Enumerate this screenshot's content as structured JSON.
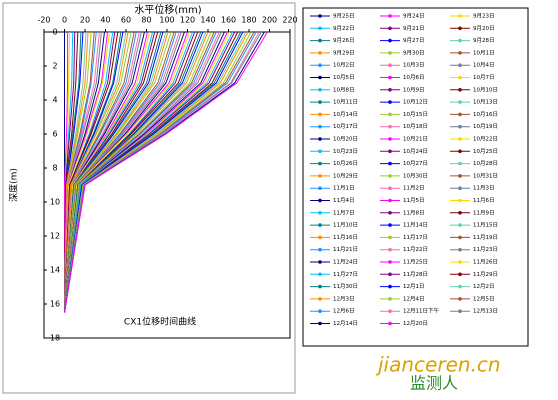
{
  "chart_data": {
    "type": "line",
    "title": "水平位移(mm)",
    "y_label": "深度(m)",
    "annotation": "CX1位移时间曲线",
    "watermark": [
      "jianceren.cn",
      "监测人"
    ],
    "xlim": [
      -20,
      220
    ],
    "xticks": [
      -20,
      0,
      20,
      40,
      60,
      80,
      100,
      120,
      140,
      160,
      180,
      200,
      220
    ],
    "ylim": [
      0,
      18
    ],
    "yticks": [
      0,
      2,
      4,
      6,
      8,
      10,
      12,
      14,
      16,
      18
    ],
    "y_inverted": true,
    "palette": [
      "#000080",
      "#ff00ff",
      "#ffd700",
      "#00bfff",
      "#800080",
      "#800000",
      "#008080",
      "#0000ff",
      "#66cdaa",
      "#ff8c00",
      "#9acd32",
      "#a0522d",
      "#1e90ff",
      "#ff69b4",
      "#708090"
    ],
    "y": [
      0,
      3,
      6,
      9,
      16.5
    ],
    "series": [
      {
        "name": "9月25日",
        "x": [
          0,
          0,
          0,
          0,
          0
        ]
      },
      {
        "name": "9月24日",
        "x": [
          3,
          3,
          2,
          0,
          0
        ]
      },
      {
        "name": "9月23日",
        "x": [
          5,
          4,
          3,
          1,
          0
        ]
      },
      {
        "name": "9月22日",
        "x": [
          8,
          7,
          4,
          1,
          0
        ]
      },
      {
        "name": "9月21日",
        "x": [
          10,
          9,
          5,
          1,
          0
        ]
      },
      {
        "name": "9月20日",
        "x": [
          13,
          11,
          7,
          1,
          0
        ]
      },
      {
        "name": "9月26日",
        "x": [
          16,
          14,
          8,
          2,
          0
        ]
      },
      {
        "name": "9月27日",
        "x": [
          18,
          15,
          9,
          2,
          0
        ]
      },
      {
        "name": "9月28日",
        "x": [
          21,
          18,
          11,
          2,
          0
        ]
      },
      {
        "name": "9月29日",
        "x": [
          23,
          20,
          12,
          2,
          0
        ]
      },
      {
        "name": "9月30日",
        "x": [
          26,
          22,
          13,
          3,
          0
        ]
      },
      {
        "name": "10月1日",
        "x": [
          29,
          25,
          15,
          3,
          0
        ]
      },
      {
        "name": "10月2日",
        "x": [
          31,
          26,
          16,
          3,
          0
        ]
      },
      {
        "name": "10月3日",
        "x": [
          34,
          29,
          17,
          3,
          0
        ]
      },
      {
        "name": "10月4日",
        "x": [
          36,
          31,
          18,
          4,
          0
        ]
      },
      {
        "name": "10月5日",
        "x": [
          39,
          33,
          20,
          4,
          0
        ]
      },
      {
        "name": "10月6日",
        "x": [
          42,
          36,
          21,
          4,
          0
        ]
      },
      {
        "name": "10月7日",
        "x": [
          44,
          37,
          22,
          4,
          0
        ]
      },
      {
        "name": "10月8日",
        "x": [
          47,
          40,
          24,
          5,
          0
        ]
      },
      {
        "name": "10月9日",
        "x": [
          49,
          42,
          25,
          5,
          0
        ]
      },
      {
        "name": "10月10日",
        "x": [
          52,
          44,
          26,
          5,
          0
        ]
      },
      {
        "name": "10月11日",
        "x": [
          55,
          47,
          28,
          6,
          0
        ]
      },
      {
        "name": "10月12日",
        "x": [
          57,
          48,
          29,
          6,
          0
        ]
      },
      {
        "name": "10月13日",
        "x": [
          60,
          51,
          30,
          6,
          0
        ]
      },
      {
        "name": "10月14日",
        "x": [
          62,
          53,
          31,
          6,
          0
        ]
      },
      {
        "name": "10月15日",
        "x": [
          65,
          55,
          33,
          7,
          0
        ]
      },
      {
        "name": "10月16日",
        "x": [
          68,
          58,
          34,
          7,
          0
        ]
      },
      {
        "name": "10月17日",
        "x": [
          70,
          60,
          35,
          7,
          0
        ]
      },
      {
        "name": "10月18日",
        "x": [
          73,
          62,
          37,
          7,
          0
        ]
      },
      {
        "name": "10月19日",
        "x": [
          75,
          64,
          38,
          8,
          0
        ]
      },
      {
        "name": "10月20日",
        "x": [
          78,
          66,
          39,
          8,
          0
        ]
      },
      {
        "name": "10月21日",
        "x": [
          81,
          69,
          41,
          8,
          0
        ]
      },
      {
        "name": "10月22日",
        "x": [
          83,
          71,
          42,
          8,
          0
        ]
      },
      {
        "name": "10月23日",
        "x": [
          86,
          73,
          43,
          9,
          0
        ]
      },
      {
        "name": "10月24日",
        "x": [
          88,
          75,
          44,
          9,
          0
        ]
      },
      {
        "name": "10月25日",
        "x": [
          91,
          77,
          46,
          9,
          0
        ]
      },
      {
        "name": "10月26日",
        "x": [
          94,
          80,
          47,
          9,
          0
        ]
      },
      {
        "name": "10月27日",
        "x": [
          96,
          82,
          48,
          10,
          0
        ]
      },
      {
        "name": "10月28日",
        "x": [
          99,
          84,
          50,
          10,
          0
        ]
      },
      {
        "name": "10月29日",
        "x": [
          101,
          86,
          51,
          10,
          0
        ]
      },
      {
        "name": "10月30日",
        "x": [
          104,
          88,
          52,
          10,
          0
        ]
      },
      {
        "name": "10月31日",
        "x": [
          107,
          91,
          54,
          11,
          0
        ]
      },
      {
        "name": "11月1日",
        "x": [
          109,
          93,
          55,
          11,
          0
        ]
      },
      {
        "name": "11月2日",
        "x": [
          112,
          95,
          56,
          11,
          0
        ]
      },
      {
        "name": "11月3日",
        "x": [
          114,
          97,
          57,
          11,
          0
        ]
      },
      {
        "name": "11月4日",
        "x": [
          117,
          99,
          59,
          12,
          0
        ]
      },
      {
        "name": "11月5日",
        "x": [
          120,
          102,
          60,
          12,
          0
        ]
      },
      {
        "name": "11月6日",
        "x": [
          122,
          104,
          61,
          12,
          0
        ]
      },
      {
        "name": "11月7日",
        "x": [
          125,
          106,
          63,
          13,
          0
        ]
      },
      {
        "name": "11月8日",
        "x": [
          127,
          108,
          64,
          13,
          0
        ]
      },
      {
        "name": "11月9日",
        "x": [
          130,
          111,
          65,
          13,
          0
        ]
      },
      {
        "name": "11月10日",
        "x": [
          133,
          113,
          67,
          13,
          0
        ]
      },
      {
        "name": "11月14日",
        "x": [
          135,
          115,
          68,
          14,
          0
        ]
      },
      {
        "name": "11月15日",
        "x": [
          138,
          117,
          69,
          14,
          0
        ]
      },
      {
        "name": "11月16日",
        "x": [
          140,
          119,
          70,
          14,
          0
        ]
      },
      {
        "name": "11月17日",
        "x": [
          143,
          122,
          72,
          14,
          0
        ]
      },
      {
        "name": "11月19日",
        "x": [
          146,
          124,
          73,
          15,
          0
        ]
      },
      {
        "name": "11月21日",
        "x": [
          148,
          126,
          74,
          15,
          0
        ]
      },
      {
        "name": "11月22日",
        "x": [
          151,
          128,
          76,
          15,
          0
        ]
      },
      {
        "name": "11月23日",
        "x": [
          153,
          130,
          77,
          15,
          0
        ]
      },
      {
        "name": "11月24日",
        "x": [
          156,
          133,
          78,
          16,
          0
        ]
      },
      {
        "name": "11月25日",
        "x": [
          159,
          135,
          80,
          16,
          0
        ]
      },
      {
        "name": "11月26日",
        "x": [
          161,
          137,
          81,
          16,
          0
        ]
      },
      {
        "name": "11月27日",
        "x": [
          164,
          139,
          82,
          16,
          0
        ]
      },
      {
        "name": "11月28日",
        "x": [
          166,
          141,
          83,
          17,
          0
        ]
      },
      {
        "name": "11月29日",
        "x": [
          169,
          144,
          85,
          17,
          0
        ]
      },
      {
        "name": "11月30日",
        "x": [
          172,
          146,
          86,
          17,
          0
        ]
      },
      {
        "name": "12月1日",
        "x": [
          174,
          148,
          87,
          17,
          0
        ]
      },
      {
        "name": "12月2日",
        "x": [
          177,
          150,
          89,
          18,
          0
        ]
      },
      {
        "name": "12月3日",
        "x": [
          179,
          152,
          90,
          18,
          0
        ]
      },
      {
        "name": "12月4日",
        "x": [
          182,
          155,
          91,
          18,
          0
        ]
      },
      {
        "name": "12月5日",
        "x": [
          185,
          157,
          93,
          19,
          0
        ]
      },
      {
        "name": "12月6日",
        "x": [
          187,
          159,
          94,
          19,
          0
        ]
      },
      {
        "name": "12月11日下午",
        "x": [
          190,
          162,
          95,
          19,
          0
        ]
      },
      {
        "name": "12月13日",
        "x": [
          192,
          163,
          96,
          19,
          0
        ]
      },
      {
        "name": "12月14日",
        "x": [
          195,
          166,
          98,
          20,
          0
        ]
      },
      {
        "name": "12月20日",
        "x": [
          198,
          168,
          99,
          20,
          0
        ]
      }
    ]
  }
}
